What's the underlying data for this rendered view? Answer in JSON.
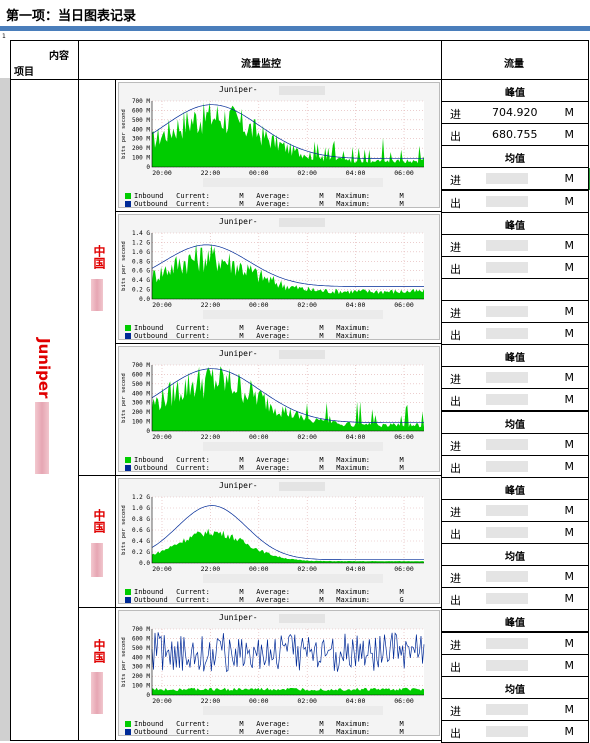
{
  "page_title": "第一项：当日图表记录",
  "page_marker": "1",
  "header": {
    "content_label": "内容",
    "item_label": "项目",
    "monitor_label": "流量监控",
    "traffic_label": "流量"
  },
  "vendor_label": "Juniper",
  "region_label": "中国",
  "peak_label": "峰值",
  "avg_label": "均值",
  "in_label": "进",
  "out_label": "出",
  "unit": "M",
  "graph_title": "Juniper-",
  "axis_ylabel": "bits per second",
  "legend": {
    "inbound": "Inbound",
    "outbound": "Outbound",
    "current": "Current:",
    "average": "Average:",
    "maximum": "Maximum:"
  },
  "graph_time_labels": [
    "20:00",
    "22:00",
    "00:00",
    "02:00",
    "04:00",
    "06:00"
  ],
  "colors": {
    "inbound": "#00cc00",
    "outbound": "#002a97",
    "region": "#e00000",
    "rule": "#4a7ebb"
  },
  "traffic": {
    "g1": {
      "peak_in": "704.920",
      "peak_out": "680.755"
    }
  },
  "chart_data": [
    {
      "type": "area",
      "y_ticks": [
        "0",
        "100 M",
        "200 M",
        "300 M",
        "400 M",
        "500 M",
        "600 M",
        "700 M"
      ],
      "ylim": [
        0,
        700
      ],
      "legend_units_in": [
        "M",
        "M",
        "M"
      ],
      "legend_units_out": [
        "M",
        "M",
        "M"
      ]
    },
    {
      "type": "area",
      "y_ticks": [
        "0.0",
        "0.2 G",
        "0.4 G",
        "0.6 G",
        "0.8 G",
        "1.0 G",
        "1.2 G",
        "1.4 G"
      ],
      "ylim": [
        0,
        1.4
      ],
      "legend_units_in": [
        "M",
        "M"
      ],
      "legend_units_out": [
        "M",
        "M"
      ]
    },
    {
      "type": "area",
      "y_ticks": [
        "0",
        "100 M",
        "200 M",
        "300 M",
        "400 M",
        "500 M",
        "600 M",
        "700 M"
      ],
      "ylim": [
        0,
        700
      ],
      "legend_units_in": [
        "M",
        "M",
        "M"
      ],
      "legend_units_out": [
        "M",
        "M",
        "M"
      ]
    },
    {
      "type": "area",
      "y_ticks": [
        "0.0",
        "0.2 G",
        "0.4 G",
        "0.6 G",
        "0.8 G",
        "1.0 G",
        "1.2 G"
      ],
      "ylim": [
        0,
        1.2
      ],
      "legend_units_in": [
        "M",
        "M",
        "M"
      ],
      "legend_units_out": [
        "M",
        "M",
        "G"
      ]
    },
    {
      "type": "area",
      "y_ticks": [
        "0",
        "100 M",
        "200 M",
        "300 M",
        "400 M",
        "500 M",
        "600 M",
        "700 M"
      ],
      "ylim": [
        0,
        700
      ],
      "legend_units_in": [
        "M",
        "M",
        "M"
      ],
      "legend_units_out": [
        "M",
        "M",
        "M"
      ]
    }
  ]
}
